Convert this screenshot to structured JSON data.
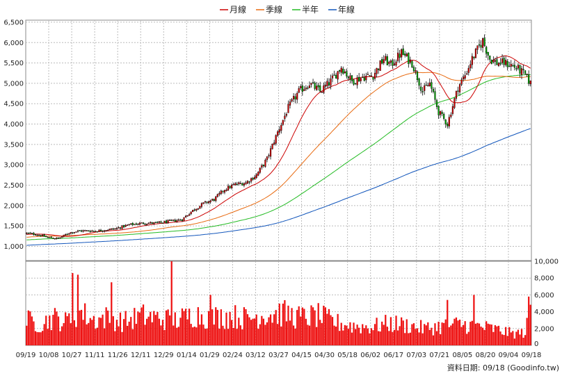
{
  "chart_data": {
    "type": "candlestick",
    "legend": [
      {
        "name": "月線",
        "color": "#cc0000"
      },
      {
        "name": "季線",
        "color": "#e86a10"
      },
      {
        "name": "半年",
        "color": "#22bb22"
      },
      {
        "name": "年線",
        "color": "#1155bb"
      }
    ],
    "price_axis": {
      "min": 650,
      "max": 6550,
      "ticks": [
        1000,
        1500,
        2000,
        2500,
        3000,
        3500,
        4000,
        4500,
        5000,
        5500,
        6000,
        6500
      ]
    },
    "price_tick_labels": [
      "1,000",
      "1,500",
      "2,000",
      "2,500",
      "3,000",
      "3,500",
      "4,000",
      "4,500",
      "5,000",
      "5,500",
      "6,000",
      "6,500"
    ],
    "volume_axis": {
      "min": 0,
      "max": 10000,
      "ticks": [
        0,
        2000,
        4000,
        6000,
        8000,
        10000
      ]
    },
    "volume_tick_labels": [
      "0",
      "2,000",
      "4,000",
      "6,000",
      "8,000",
      "10,000"
    ],
    "x_tick_labels": [
      "09/19",
      "10/08",
      "10/27",
      "11/11",
      "11/26",
      "12/11",
      "12/29",
      "01/14",
      "01/29",
      "02/24",
      "03/12",
      "03/27",
      "04/15",
      "04/30",
      "05/18",
      "06/02",
      "06/17",
      "07/03",
      "07/21",
      "08/05",
      "08/20",
      "09/04",
      "09/18"
    ],
    "close_anchors": [
      [
        0,
        1320
      ],
      [
        6,
        1290
      ],
      [
        12,
        1220
      ],
      [
        18,
        1190
      ],
      [
        24,
        1330
      ],
      [
        30,
        1380
      ],
      [
        40,
        1380
      ],
      [
        50,
        1430
      ],
      [
        58,
        1530
      ],
      [
        66,
        1570
      ],
      [
        74,
        1570
      ],
      [
        82,
        1620
      ],
      [
        88,
        1660
      ],
      [
        93,
        1850
      ],
      [
        100,
        2050
      ],
      [
        106,
        2150
      ],
      [
        112,
        2400
      ],
      [
        118,
        2520
      ],
      [
        124,
        2560
      ],
      [
        130,
        2750
      ],
      [
        136,
        3150
      ],
      [
        142,
        3800
      ],
      [
        148,
        4400
      ],
      [
        154,
        4800
      ],
      [
        160,
        5000
      ],
      [
        166,
        4800
      ],
      [
        172,
        5050
      ],
      [
        178,
        5400
      ],
      [
        184,
        5050
      ],
      [
        190,
        5150
      ],
      [
        196,
        5200
      ],
      [
        202,
        5600
      ],
      [
        206,
        5450
      ],
      [
        212,
        5750
      ],
      [
        218,
        5500
      ],
      [
        224,
        4800
      ],
      [
        228,
        5000
      ],
      [
        233,
        4300
      ],
      [
        238,
        4000
      ],
      [
        244,
        4900
      ],
      [
        248,
        5200
      ],
      [
        252,
        5600
      ],
      [
        258,
        6050
      ],
      [
        262,
        5600
      ],
      [
        266,
        5500
      ],
      [
        270,
        5500
      ],
      [
        274,
        5450
      ],
      [
        278,
        5350
      ],
      [
        282,
        5200
      ],
      [
        285,
        5000
      ]
    ],
    "volume_anchors": [
      [
        0,
        3000
      ],
      [
        8,
        2500
      ],
      [
        15,
        3300
      ],
      [
        22,
        2800
      ],
      [
        30,
        4000
      ],
      [
        38,
        3000
      ],
      [
        45,
        3300
      ],
      [
        55,
        2800
      ],
      [
        65,
        3500
      ],
      [
        75,
        3200
      ],
      [
        85,
        3000
      ],
      [
        95,
        3700
      ],
      [
        105,
        3300
      ],
      [
        115,
        3500
      ],
      [
        125,
        3200
      ],
      [
        135,
        3700
      ],
      [
        145,
        3800
      ],
      [
        155,
        3300
      ],
      [
        165,
        3500
      ],
      [
        175,
        2700
      ],
      [
        185,
        2300
      ],
      [
        195,
        2200
      ],
      [
        205,
        2600
      ],
      [
        215,
        2400
      ],
      [
        225,
        2000
      ],
      [
        235,
        2300
      ],
      [
        245,
        2500
      ],
      [
        255,
        2300
      ],
      [
        265,
        1900
      ],
      [
        275,
        1400
      ],
      [
        282,
        1500
      ],
      [
        285,
        4000
      ]
    ],
    "volume_spikes": [
      [
        26,
        8600
      ],
      [
        29,
        8400
      ],
      [
        48,
        7500
      ],
      [
        82,
        10200
      ],
      [
        104,
        6000
      ],
      [
        238,
        5400
      ],
      [
        253,
        6000
      ],
      [
        284,
        5800
      ]
    ],
    "bar_count": 286,
    "color_up": "#dd0000",
    "color_down": "#00aa00",
    "line_colors": {
      "ma_month": "#cc0000",
      "ma_quarter": "#e86a10",
      "ma_half": "#22bb22",
      "ma_year": "#1155bb"
    },
    "grid": true
  },
  "footer": {
    "label": "資料日期: 09/18",
    "source": "(Goodinfo.tw)"
  }
}
